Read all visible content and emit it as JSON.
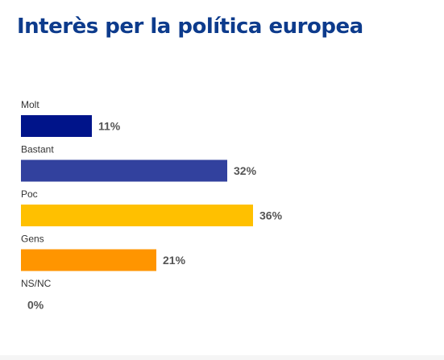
{
  "chart_data": {
    "type": "bar",
    "orientation": "horizontal",
    "title": "Interès per la política europea",
    "categories": [
      "Molt",
      "Bastant",
      "Poc",
      "Gens",
      "NS/NC"
    ],
    "values": [
      11,
      32,
      36,
      21,
      0
    ],
    "value_labels": [
      "11%",
      "32%",
      "36%",
      "21%",
      "0%"
    ],
    "colors": [
      "#00148a",
      "#32419e",
      "#ffc000",
      "#ff9500",
      "#cccccc"
    ],
    "xlim": [
      0,
      36
    ],
    "grid": false,
    "legend": "none"
  }
}
